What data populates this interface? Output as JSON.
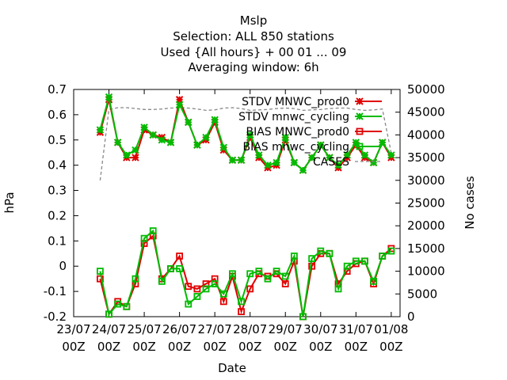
{
  "title_lines": [
    "Mslp",
    "Selection: ALL    850 stations",
    "Used {All hours} + 00 01 ... 09",
    "Averaging window:  6h"
  ],
  "chart_data": {
    "type": "line",
    "xlabel": "Date",
    "ylabel": "hPa",
    "y2label": "No cases",
    "ylim": [
      -0.2,
      0.7
    ],
    "y2lim": [
      0,
      50000
    ],
    "yticks": [
      "0.7",
      "0.6",
      "0.5",
      "0.4",
      "0.3",
      "0.2",
      "0.1",
      "0",
      "-0.1",
      "-0.2"
    ],
    "y2ticks": [
      "50000",
      "45000",
      "40000",
      "35000",
      "30000",
      "25000",
      "20000",
      "15000",
      "10000",
      "5000",
      "0"
    ],
    "x_tick_labels": [
      {
        "date": "23/07",
        "hour": "00Z"
      },
      {
        "date": "24/07",
        "hour": "00Z"
      },
      {
        "date": "25/07",
        "hour": "00Z"
      },
      {
        "date": "26/07",
        "hour": "00Z"
      },
      {
        "date": "27/07",
        "hour": "00Z"
      },
      {
        "date": "28/07",
        "hour": "00Z"
      },
      {
        "date": "29/07",
        "hour": "00Z"
      },
      {
        "date": "30/07",
        "hour": "00Z"
      },
      {
        "date": "31/07",
        "hour": "00Z"
      },
      {
        "date": "01/08",
        "hour": "00Z"
      }
    ],
    "x_hours": [
      18,
      24,
      30,
      36,
      42,
      48,
      54,
      60,
      66,
      72,
      78,
      84,
      90,
      96,
      102,
      108,
      114,
      120,
      126,
      132,
      138,
      144,
      150,
      156,
      162,
      168,
      174,
      180,
      186,
      192,
      198,
      204,
      210,
      216
    ],
    "legend_position": "top-right",
    "grid": false,
    "series": [
      {
        "name": "STDV MNWC_prod0",
        "axis": "left",
        "color": "#e00000",
        "marker": "star",
        "values": [
          0.53,
          0.66,
          0.49,
          0.43,
          0.43,
          0.54,
          0.52,
          0.51,
          0.49,
          0.66,
          0.57,
          0.48,
          0.5,
          0.57,
          0.46,
          0.42,
          0.42,
          0.51,
          0.43,
          0.39,
          0.4,
          0.5,
          0.41,
          0.38,
          0.43,
          0.48,
          0.43,
          0.39,
          0.43,
          0.48,
          0.43,
          0.41,
          0.49,
          0.43
        ]
      },
      {
        "name": "STDV mnwc_cycling",
        "axis": "left",
        "color": "#00bb00",
        "marker": "star",
        "values": [
          0.54,
          0.67,
          0.49,
          0.44,
          0.46,
          0.55,
          0.52,
          0.5,
          0.49,
          0.64,
          0.57,
          0.48,
          0.51,
          0.58,
          0.47,
          0.42,
          0.42,
          0.52,
          0.44,
          0.4,
          0.41,
          0.51,
          0.41,
          0.38,
          0.43,
          0.48,
          0.43,
          0.4,
          0.44,
          0.49,
          0.44,
          0.41,
          0.49,
          0.44
        ]
      },
      {
        "name": "BIAS MNWC_prod0",
        "axis": "left",
        "color": "#e00000",
        "marker": "square",
        "values": [
          -0.05,
          -0.19,
          -0.14,
          -0.16,
          -0.07,
          0.09,
          0.12,
          -0.05,
          -0.01,
          0.04,
          -0.08,
          -0.09,
          -0.07,
          -0.05,
          -0.14,
          -0.04,
          -0.18,
          -0.09,
          -0.03,
          -0.04,
          -0.03,
          -0.07,
          0.02,
          -0.2,
          0.0,
          0.05,
          0.05,
          -0.07,
          -0.02,
          0.01,
          0.02,
          -0.07,
          0.04,
          0.07
        ]
      },
      {
        "name": "BIAS mnwc_cycling",
        "axis": "left",
        "color": "#00bb00",
        "marker": "square",
        "values": [
          -0.02,
          -0.19,
          -0.15,
          -0.16,
          -0.05,
          0.11,
          0.14,
          -0.06,
          -0.01,
          -0.01,
          -0.15,
          -0.12,
          -0.09,
          -0.07,
          -0.11,
          -0.03,
          -0.14,
          -0.03,
          -0.02,
          -0.05,
          -0.02,
          -0.04,
          0.04,
          -0.2,
          0.03,
          0.06,
          0.05,
          -0.09,
          0.0,
          0.02,
          0.02,
          -0.06,
          0.04,
          0.06
        ]
      },
      {
        "name": "CASES",
        "axis": "right",
        "color": "#888888",
        "marker": "none",
        "dashed": true,
        "values": [
          30000,
          45600,
          46000,
          46000,
          45800,
          45600,
          45600,
          45700,
          45900,
          46000,
          45900,
          45700,
          45400,
          45500,
          45900,
          46000,
          45800,
          45400,
          45500,
          45600,
          45800,
          45900,
          45800,
          45400,
          45500,
          45600,
          45800,
          45900,
          45900,
          45600,
          45400,
          45500,
          45700,
          36000
        ]
      }
    ]
  }
}
